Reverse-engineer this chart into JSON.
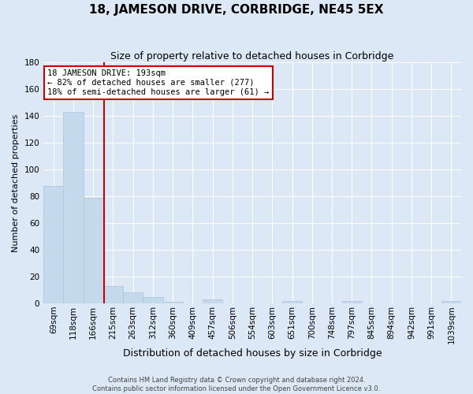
{
  "title": "18, JAMESON DRIVE, CORBRIDGE, NE45 5EX",
  "subtitle": "Size of property relative to detached houses in Corbridge",
  "bar_labels": [
    "69sqm",
    "118sqm",
    "166sqm",
    "215sqm",
    "263sqm",
    "312sqm",
    "360sqm",
    "409sqm",
    "457sqm",
    "506sqm",
    "554sqm",
    "603sqm",
    "651sqm",
    "700sqm",
    "748sqm",
    "797sqm",
    "845sqm",
    "894sqm",
    "942sqm",
    "991sqm",
    "1039sqm"
  ],
  "bar_values": [
    88,
    143,
    79,
    13,
    8,
    5,
    1,
    0,
    3,
    0,
    0,
    0,
    2,
    0,
    0,
    2,
    0,
    0,
    0,
    0,
    2
  ],
  "bar_color": "#c5d9ed",
  "bar_edge_color": "#a8c4de",
  "vline_x": 2.55,
  "xlabel": "Distribution of detached houses by size in Corbridge",
  "ylabel": "Number of detached properties",
  "ylim": [
    0,
    180
  ],
  "yticks": [
    0,
    20,
    40,
    60,
    80,
    100,
    120,
    140,
    160,
    180
  ],
  "annotation_title": "18 JAMESON DRIVE: 193sqm",
  "annotation_line1": "← 82% of detached houses are smaller (277)",
  "annotation_line2": "18% of semi-detached houses are larger (61) →",
  "vline_color": "#cc0000",
  "annotation_box_facecolor": "#ffffff",
  "annotation_box_edgecolor": "#cc0000",
  "footer1": "Contains HM Land Registry data © Crown copyright and database right 2024.",
  "footer2": "Contains public sector information licensed under the Open Government Licence v3.0.",
  "fig_facecolor": "#dce8f5",
  "ax_facecolor": "#dce8f5",
  "grid_color": "#ffffff",
  "title_fontsize": 11,
  "subtitle_fontsize": 9,
  "xlabel_fontsize": 9,
  "ylabel_fontsize": 8,
  "tick_fontsize": 7.5,
  "footer_fontsize": 6
}
